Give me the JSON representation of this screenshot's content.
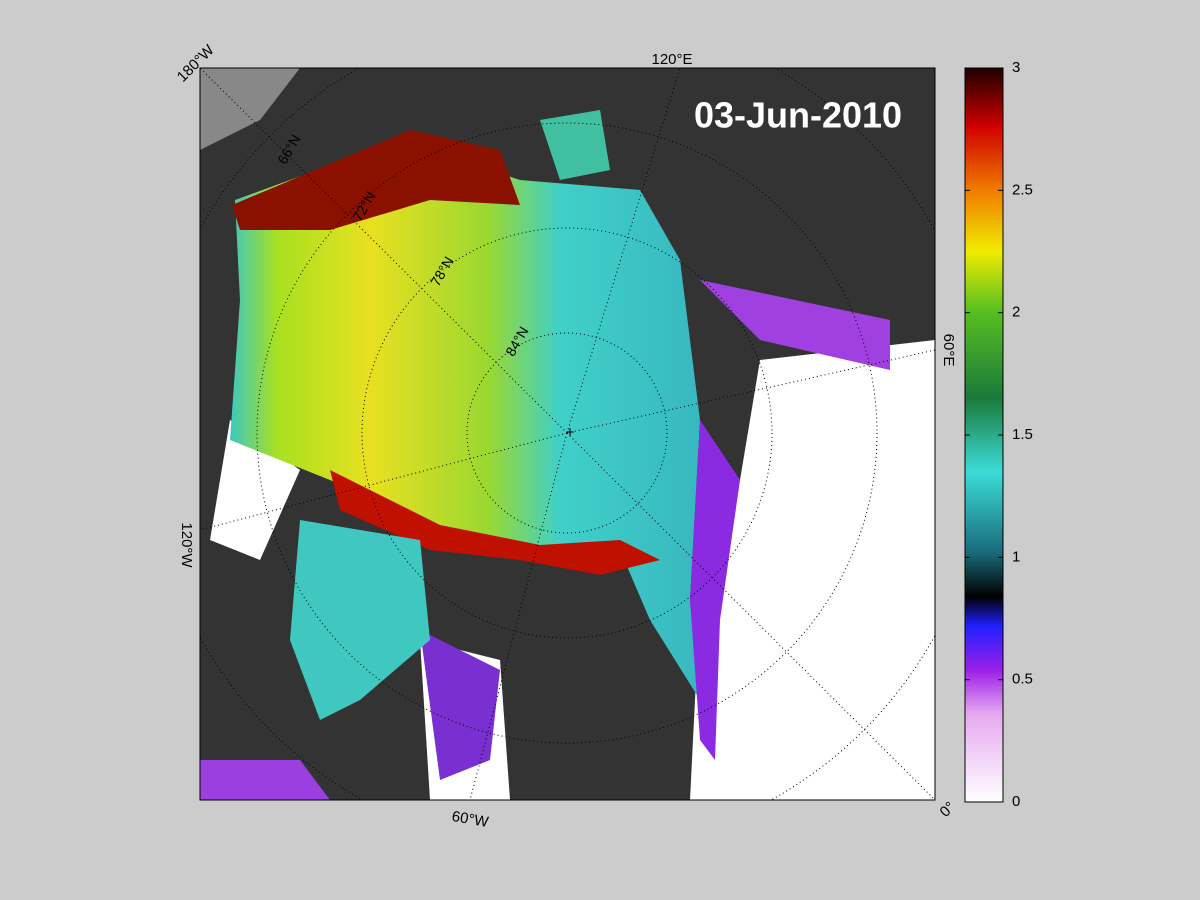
{
  "date": "03-Jun-2010",
  "longitude_labels": {
    "w180": "180°W",
    "e120": "120°E",
    "e60": "60°E",
    "zero": "0°",
    "w60": "60°W",
    "w120": "120°W"
  },
  "latitude_labels": {
    "n66": "66°N",
    "n72": "72°N",
    "n78": "78°N",
    "n84": "84°N"
  },
  "colorbar": {
    "lim": [
      0,
      3
    ],
    "ticks": [
      0,
      0.5,
      1,
      1.5,
      2,
      2.5,
      3
    ]
  }
}
